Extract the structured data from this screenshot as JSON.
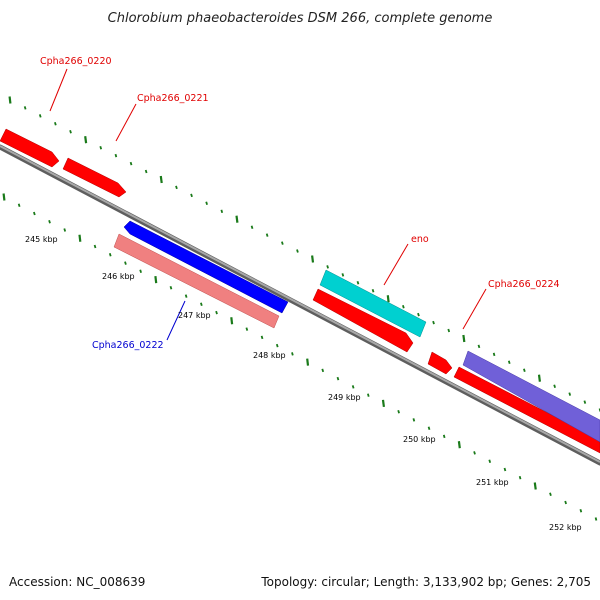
{
  "title": "Chlorobium phaeobacteroides DSM 266, complete genome",
  "footer": {
    "accession": "Accession: NC_008639",
    "summary": "Topology: circular; Length: 3,133,902 bp; Genes: 2,705"
  },
  "tick_labels": [
    "245 kbp",
    "246 kbp",
    "247 kbp",
    "248 kbp",
    "249 kbp",
    "250 kbp",
    "251 kbp",
    "252 kbp"
  ],
  "gene_labels": {
    "cpha0220": "Cpha266_0220",
    "cpha0221": "Cpha266_0221",
    "cpha0222": "Cpha266_0222",
    "eno": "eno",
    "cpha0224": "Cpha266_0224"
  },
  "colors": {
    "backbone": "#7a7a7a",
    "tick": "#1a7a1a",
    "cds_forward": "#ff0000",
    "cds_reverse": "#0000ff",
    "rna": "#00c8c8",
    "feature_pink": "#f08080",
    "feature_purple": "#7060d8",
    "label_red": "#e00000",
    "label_blue": "#0000d0"
  }
}
